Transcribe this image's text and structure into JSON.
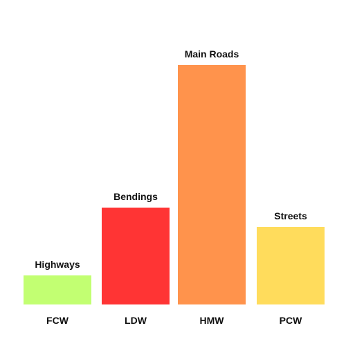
{
  "chart_data": {
    "type": "bar",
    "categories": [
      "FCW",
      "LDW",
      "HMW",
      "PCW"
    ],
    "values": [
      42,
      140,
      346,
      112
    ],
    "bar_labels": [
      "Highways",
      "Bendings",
      "Main Roads",
      "Streets"
    ],
    "colors": [
      "#c2ff72",
      "#ff3434",
      "#ff934c",
      "#ffdc5c"
    ],
    "ylim": [
      0,
      360
    ],
    "grid": false,
    "legend": "none"
  }
}
